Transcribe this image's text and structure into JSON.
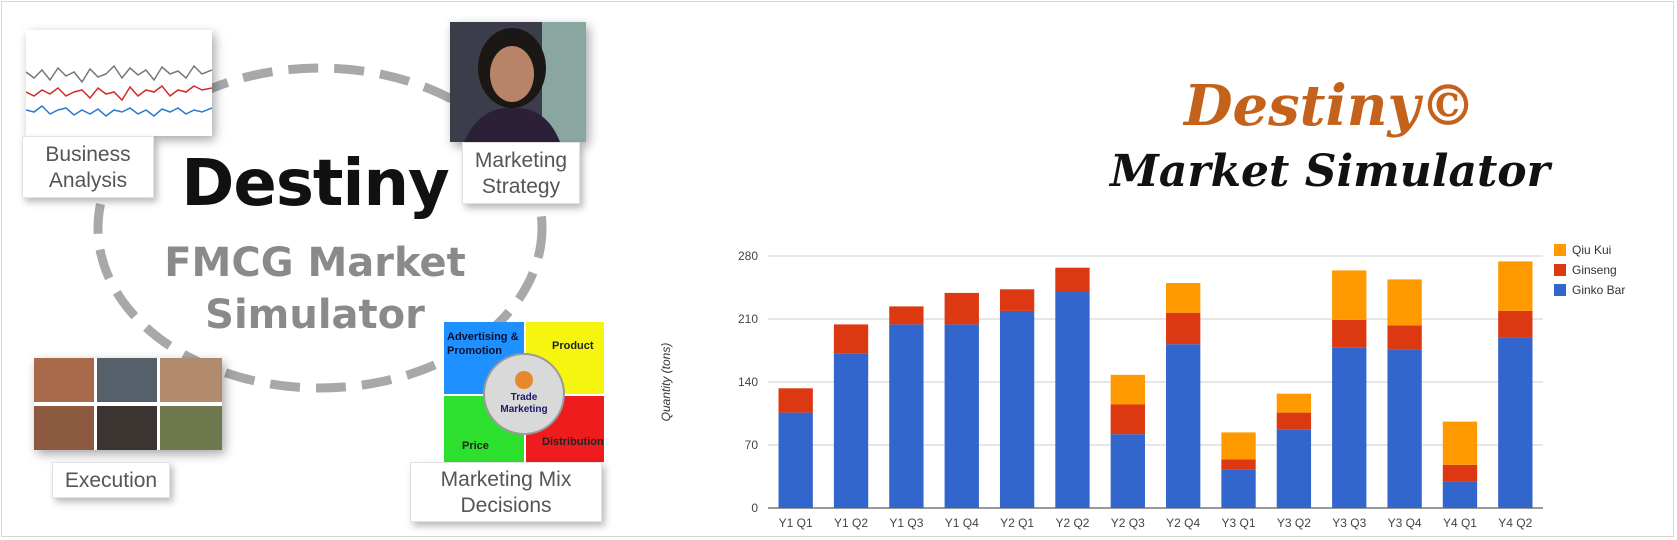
{
  "left_panel": {
    "title": "Destiny",
    "subtitle": "FMCG Market\nSimulator",
    "cards": {
      "business_analysis": "Business\nAnalysis",
      "marketing_strategy": "Marketing\nStrategy",
      "execution": "Execution",
      "marketing_mix": "Marketing Mix\nDecisions"
    },
    "puzzle": {
      "advertising": "Advertising &\nPromotion",
      "product": "Product",
      "trade": "Trade\nMarketing",
      "price": "Price",
      "distribution": "Distribution"
    }
  },
  "right_panel": {
    "brand_line1": "Destiny©",
    "brand_line2": "Market Simulator"
  },
  "colors": {
    "ginko": "#3366cc",
    "ginseng": "#dc3912",
    "qiukui": "#ff9900",
    "ring": "#a8a8a8"
  },
  "chart_data": {
    "type": "bar",
    "stacked": true,
    "categories": [
      "Y1 Q1",
      "Y1 Q2",
      "Y1 Q3",
      "Y1 Q4",
      "Y2 Q1",
      "Y2 Q2",
      "Y2 Q3",
      "Y2 Q4",
      "Y3 Q1",
      "Y3 Q2",
      "Y3 Q3",
      "Y3 Q4",
      "Y4 Q1",
      "Y4 Q2"
    ],
    "series": [
      {
        "name": "Ginko Bar",
        "color": "#3366cc",
        "values": [
          106,
          172,
          204,
          204,
          219,
          240,
          82,
          182,
          43,
          87,
          178,
          176,
          29,
          189
        ]
      },
      {
        "name": "Ginseng",
        "color": "#dc3912",
        "values": [
          27,
          32,
          20,
          35,
          24,
          27,
          33,
          35,
          11,
          19,
          31,
          27,
          19,
          30
        ]
      },
      {
        "name": "Qiu Kui",
        "color": "#ff9900",
        "values": [
          0,
          0,
          0,
          0,
          0,
          0,
          33,
          33,
          30,
          21,
          55,
          51,
          48,
          55
        ]
      }
    ],
    "legend_order": [
      "Qiu Kui",
      "Ginseng",
      "Ginko Bar"
    ],
    "ylabel": "Quantity (tons)",
    "xlabel": "",
    "ylim": [
      0,
      280
    ],
    "yticks": [
      0,
      70,
      140,
      210,
      280
    ],
    "grid": true,
    "legend_position": "right"
  }
}
